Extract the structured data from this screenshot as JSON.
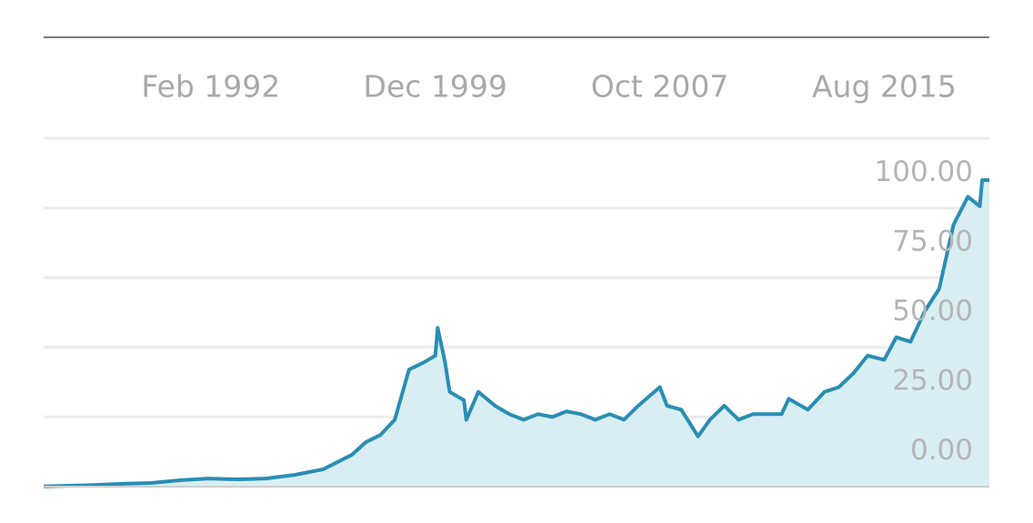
{
  "chart_data": {
    "type": "area",
    "x": [
      "1986-04",
      "1987-01",
      "1988-01",
      "1989-01",
      "1990-01",
      "1991-01",
      "1992-01",
      "1993-01",
      "1994-01",
      "1995-01",
      "1996-01",
      "1997-01",
      "1997-07",
      "1998-01",
      "1998-07",
      "1999-01",
      "1999-07",
      "1999-12",
      "2000-01",
      "2000-04",
      "2000-06",
      "2000-12",
      "2001-01",
      "2001-06",
      "2002-01",
      "2002-07",
      "2003-01",
      "2003-07",
      "2004-01",
      "2004-07",
      "2005-01",
      "2005-07",
      "2006-01",
      "2006-07",
      "2007-01",
      "2007-10",
      "2008-01",
      "2008-07",
      "2009-02",
      "2009-07",
      "2010-01",
      "2010-07",
      "2011-01",
      "2011-07",
      "2012-01",
      "2012-04",
      "2012-12",
      "2013-07",
      "2014-01",
      "2014-07",
      "2015-01",
      "2015-08",
      "2016-01",
      "2016-07",
      "2017-01",
      "2017-07",
      "2018-01",
      "2018-07",
      "2018-12",
      "2019-01",
      "2019-04"
    ],
    "values": [
      0.1,
      0.3,
      0.6,
      1,
      1.3,
      2.3,
      2.9,
      2.6,
      2.9,
      4.2,
      6.2,
      11.4,
      16,
      18.5,
      24,
      42,
      44.5,
      47,
      57,
      45,
      34,
      31,
      24,
      34,
      29,
      26,
      24,
      26,
      25,
      27,
      26,
      24,
      26,
      24,
      29,
      35.7,
      29,
      27.6,
      18,
      24,
      29,
      24,
      26,
      26,
      26,
      31.5,
      27.6,
      34,
      35.7,
      40.6,
      47,
      45.5,
      53.6,
      52,
      63,
      71,
      94,
      104,
      100.6,
      110,
      110
    ],
    "color": "#2a8db5",
    "fill": "#d9eef3",
    "xlim": [
      "1986-04",
      "2019-04"
    ],
    "xticks": [
      {
        "value": "1992-02",
        "label": "Feb 1992"
      },
      {
        "value": "1999-12",
        "label": "Dec 1999"
      },
      {
        "value": "2007-10",
        "label": "Oct 2007"
      },
      {
        "value": "2015-08",
        "label": "Aug 2015"
      }
    ],
    "ylim": [
      0,
      125
    ],
    "yticks": [
      {
        "value": 0,
        "label": "0.00"
      },
      {
        "value": 25,
        "label": "25.00"
      },
      {
        "value": 50,
        "label": "50.00"
      },
      {
        "value": 75,
        "label": "75.00"
      },
      {
        "value": 100,
        "label": "100.00"
      }
    ],
    "grid": true
  }
}
